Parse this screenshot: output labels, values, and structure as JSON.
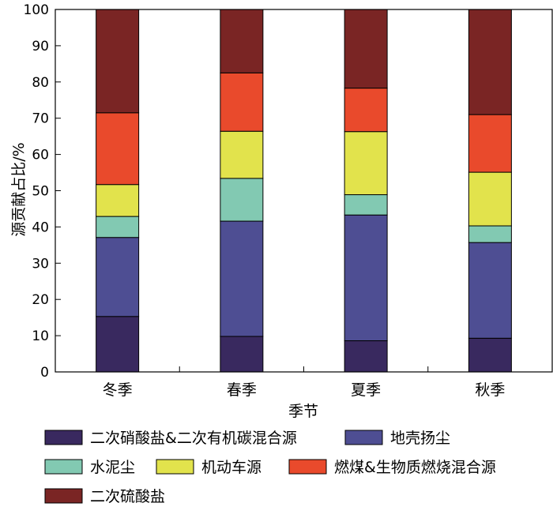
{
  "chart_data": {
    "type": "bar",
    "stacked": true,
    "categories": [
      "冬季",
      "春季",
      "夏季",
      "秋季"
    ],
    "xlabel": "季节",
    "ylabel": "源贡献占比/%",
    "ylim": [
      0,
      100
    ],
    "yticks": [
      0,
      10,
      20,
      30,
      40,
      50,
      60,
      70,
      80,
      90,
      100
    ],
    "grid": false,
    "legend_position": "bottom",
    "series": [
      {
        "name": "二次硝酸盐&二次有机碳混合源",
        "color": "#39295f",
        "values": [
          15.3,
          9.8,
          8.6,
          9.3
        ]
      },
      {
        "name": "地壳扬尘",
        "color": "#4e4e93",
        "values": [
          21.8,
          31.8,
          34.7,
          26.4
        ]
      },
      {
        "name": "水泥尘",
        "color": "#82c9b2",
        "values": [
          5.8,
          11.8,
          5.6,
          4.6
        ]
      },
      {
        "name": "机动车源",
        "color": "#e2e34c",
        "values": [
          8.8,
          13.0,
          17.4,
          14.8
        ]
      },
      {
        "name": "燃煤&生物质燃烧混合源",
        "color": "#e94a2c",
        "values": [
          19.8,
          16.1,
          12.0,
          15.9
        ]
      },
      {
        "name": "二次硫酸盐",
        "color": "#7a2524",
        "values": [
          28.5,
          17.5,
          21.7,
          29.0
        ]
      }
    ]
  }
}
